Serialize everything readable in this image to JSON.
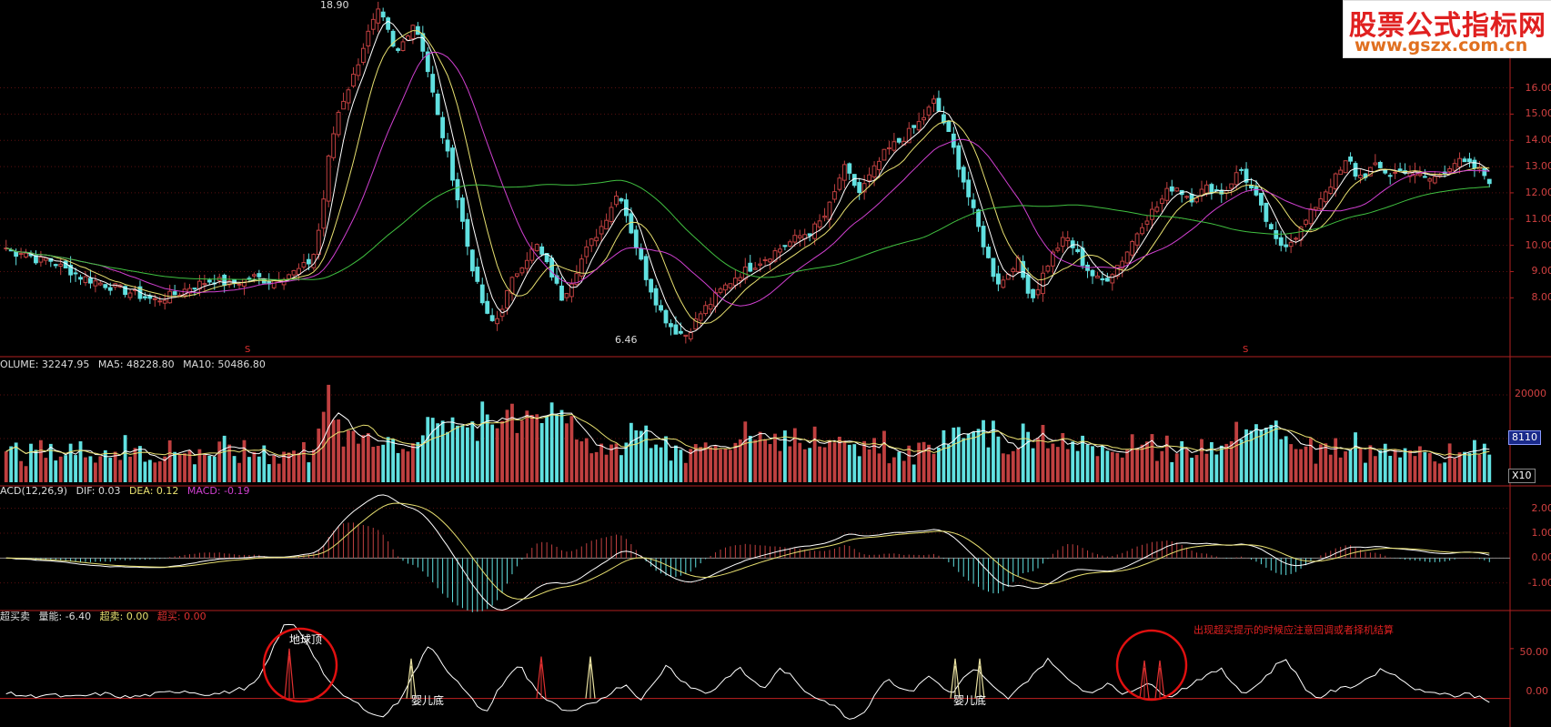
{
  "logo": {
    "line1": "股票公式指标网",
    "line2": "www.gszx.com.cn"
  },
  "price_panel": {
    "high_label": "18.90",
    "low_label": "6.46",
    "y_ticks": [
      "16.00",
      "15.00",
      "14.00",
      "13.00",
      "12.00",
      "11.00",
      "10.00",
      "9.00",
      "8.00"
    ],
    "markers": [
      "S",
      "S"
    ]
  },
  "volume_panel": {
    "title_prefix": "OLUME: 32247.95",
    "ma5": "MA5: 48228.80",
    "ma10": "MA10: 50486.80",
    "y_ticks": [
      "20000",
      "8110"
    ],
    "unit": "X10"
  },
  "macd_panel": {
    "title": "ACD(12,26,9)",
    "dif": "DIF: 0.03",
    "dea": "DEA: 0.12",
    "macd": "MACD: -0.19",
    "y_ticks": [
      "2.00",
      "1.00",
      "0.00",
      "-1.00"
    ]
  },
  "signal_panel": {
    "title": "超买卖",
    "energy": "量能: -6.40",
    "oversold": "超卖: 0.00",
    "overbought": "超买: 0.00",
    "y_ticks": [
      "50.00",
      "0.00"
    ],
    "note": "出现超买提示的时候应注意回调或者择机结算",
    "annotations": [
      "地球顶",
      "婴儿底",
      "婴儿底"
    ]
  },
  "colors": {
    "up": "#c04040",
    "down": "#60e0e0",
    "ma5": "#ffffff",
    "ma10": "#e8e070",
    "ma20": "#d040d0",
    "ma60": "#40c040",
    "axis": "#b02020",
    "circle": "#e01010"
  },
  "chart_data": {
    "type": "candlestick",
    "price_ylim": [
      6.0,
      19.0
    ],
    "price_high": 18.9,
    "price_low": 6.46,
    "volume_ylim": [
      0,
      25000
    ],
    "macd_ylim": [
      -2.0,
      2.5
    ],
    "signal_ylim": [
      -25,
      80
    ],
    "price_path": [
      9.9,
      9.7,
      9.8,
      9.6,
      9.4,
      9.5,
      9.3,
      9.1,
      9.0,
      8.8,
      8.7,
      8.6,
      8.5,
      8.4,
      8.3,
      8.2,
      8.1,
      8.0,
      7.9,
      8.0,
      8.1,
      8.2,
      8.4,
      8.5,
      8.6,
      8.7,
      8.6,
      8.5,
      8.6,
      8.7,
      8.8,
      8.7,
      8.6,
      8.8,
      8.9,
      9.0,
      9.2,
      9.5,
      11.0,
      13.5,
      15.0,
      15.8,
      16.5,
      17.5,
      18.3,
      18.9,
      18.2,
      17.2,
      17.8,
      18.5,
      17.9,
      16.5,
      15.0,
      13.8,
      12.5,
      11.0,
      9.5,
      8.3,
      7.3,
      7.0,
      7.8,
      8.6,
      9.2,
      9.6,
      10.0,
      9.4,
      8.8,
      8.0,
      8.5,
      9.2,
      9.8,
      10.3,
      10.8,
      11.5,
      12.1,
      11.0,
      10.0,
      9.0,
      8.2,
      7.5,
      7.0,
      6.7,
      6.6,
      7.0,
      7.5,
      7.8,
      8.2,
      8.5,
      8.8,
      9.0,
      9.2,
      9.4,
      9.6,
      9.8,
      10.0,
      10.2,
      10.4,
      10.5,
      10.8,
      11.2,
      12.0,
      13.0,
      12.5,
      12.0,
      12.5,
      13.0,
      13.5,
      13.8,
      14.0,
      14.3,
      14.6,
      15.0,
      15.5,
      14.8,
      14.0,
      13.0,
      12.0,
      11.0,
      10.0,
      9.0,
      8.5,
      9.0,
      9.5,
      8.5,
      8.0,
      8.8,
      9.5,
      10.0,
      10.3,
      9.8,
      9.3,
      8.9,
      8.6,
      8.8,
      9.2,
      9.6,
      10.2,
      10.8,
      11.2,
      11.5,
      12.0,
      12.3,
      12.0,
      11.8,
      12.0,
      12.2,
      12.1,
      12.0,
      12.5,
      12.9,
      12.3,
      11.7,
      11.0,
      10.2,
      10.0,
      10.2,
      10.5,
      11.0,
      11.5,
      12.0,
      12.4,
      12.8,
      13.3,
      12.6,
      12.7,
      13.0,
      12.9,
      12.7,
      12.8,
      12.9,
      12.7,
      12.6,
      12.5,
      12.7,
      13.0,
      13.2,
      13.1,
      13.0,
      12.8,
      12.5
    ],
    "signal_path": [
      5,
      4,
      3,
      2,
      3,
      4,
      3,
      2,
      1,
      2,
      3,
      4,
      5,
      3,
      2,
      1,
      2,
      3,
      4,
      5,
      6,
      7,
      8,
      6,
      5,
      4,
      5,
      6,
      8,
      10,
      12,
      20,
      35,
      55,
      72,
      75,
      68,
      55,
      40,
      25,
      12,
      5,
      0,
      -5,
      -10,
      -15,
      -20,
      -12,
      -5,
      10,
      25,
      40,
      55,
      42,
      30,
      20,
      10,
      0,
      -8,
      -15,
      5,
      15,
      25,
      35,
      20,
      10,
      0,
      -5,
      -10,
      -15,
      -12,
      -8,
      -5,
      0,
      5,
      10,
      15,
      5,
      0,
      10,
      20,
      35,
      25,
      18,
      12,
      8,
      5,
      10,
      18,
      25,
      30,
      22,
      15,
      10,
      20,
      30,
      25,
      15,
      8,
      3,
      0,
      -5,
      -10,
      -18,
      -20,
      -15,
      -5,
      10,
      20,
      15,
      10,
      5,
      15,
      22,
      18,
      10,
      5,
      15,
      25,
      30,
      20,
      12,
      5,
      0,
      8,
      15,
      25,
      32,
      40,
      30,
      20,
      15,
      10,
      5,
      10,
      15,
      10,
      5,
      8,
      12,
      15,
      10,
      5,
      3,
      8,
      12,
      18,
      22,
      25,
      30,
      20,
      12,
      5,
      10,
      18,
      25,
      35,
      40,
      28,
      15,
      5,
      0,
      5,
      8,
      10,
      12,
      15,
      20,
      25,
      30,
      25,
      20,
      15,
      10,
      5,
      8,
      6,
      4,
      2,
      5,
      3,
      1,
      -2
    ],
    "series": [
      {
        "name": "MA5"
      },
      {
        "name": "MA10"
      },
      {
        "name": "MA20"
      },
      {
        "name": "MA60"
      }
    ]
  }
}
